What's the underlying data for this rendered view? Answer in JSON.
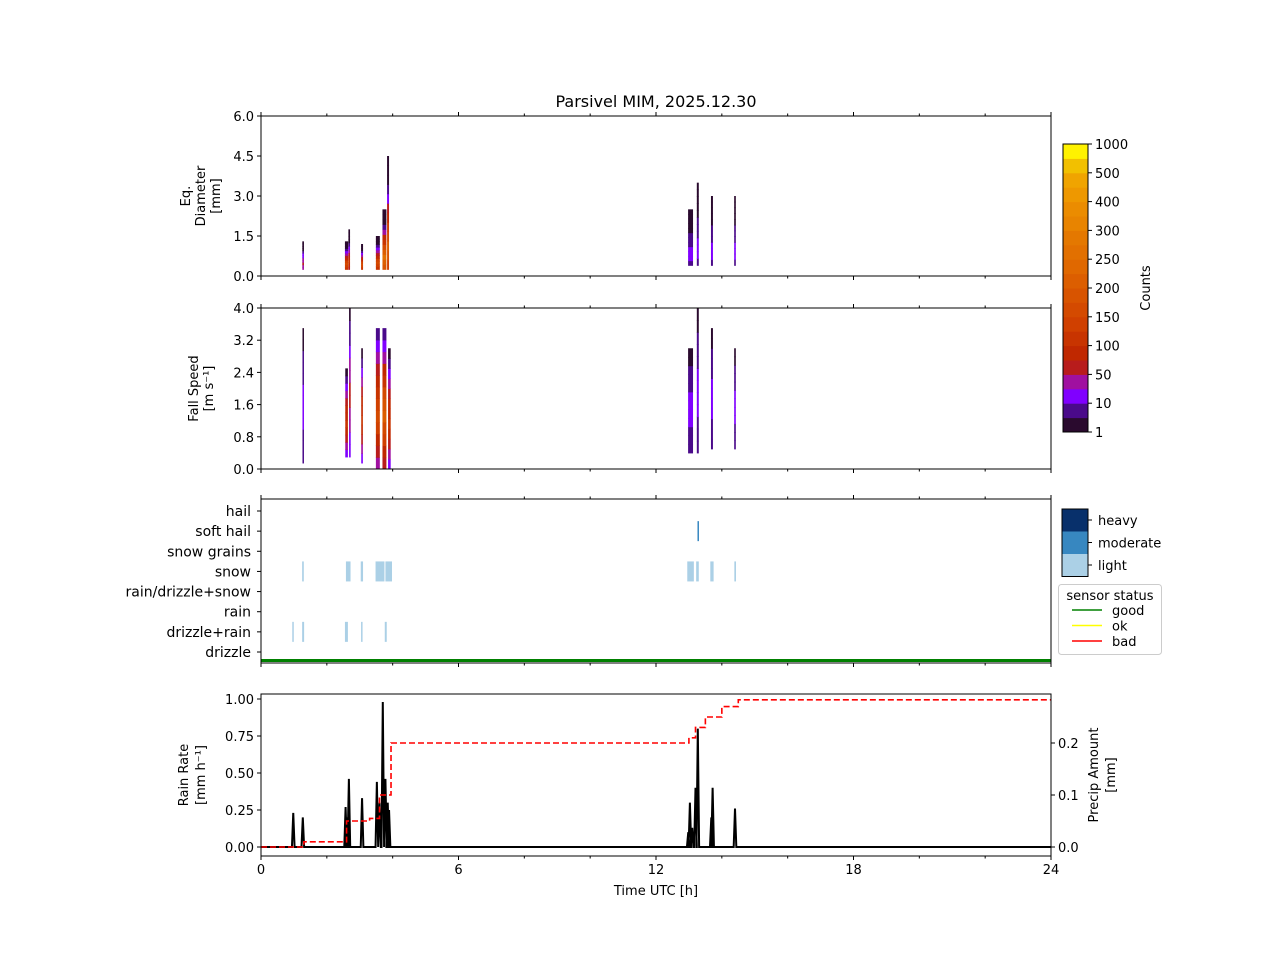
{
  "chart_data": [
    {
      "type": "heatmap",
      "title": "Parsivel MIM, 2025.12.30",
      "ylabel": [
        "Eq.",
        "Diameter",
        "[mm]"
      ],
      "ylim": [
        0,
        6.0
      ],
      "yticks": [
        "0.0",
        "1.5",
        "3.0",
        "4.5",
        "6.0"
      ],
      "columns": [
        {
          "t": 1.28,
          "w": 0.05,
          "dmin": 0.25,
          "dmax": 1.3,
          "peak": 50
        },
        {
          "t": 2.6,
          "w": 0.1,
          "dmin": 0.25,
          "dmax": 1.3,
          "peak": 150
        },
        {
          "t": 2.68,
          "w": 0.05,
          "dmin": 0.25,
          "dmax": 1.75,
          "peak": 100
        },
        {
          "t": 3.07,
          "w": 0.06,
          "dmin": 0.25,
          "dmax": 1.2,
          "peak": 150
        },
        {
          "t": 3.55,
          "w": 0.12,
          "dmin": 0.25,
          "dmax": 1.5,
          "peak": 150
        },
        {
          "t": 3.75,
          "w": 0.12,
          "dmin": 0.25,
          "dmax": 2.5,
          "peak": 250
        },
        {
          "t": 3.86,
          "w": 0.06,
          "dmin": 0.25,
          "dmax": 4.5,
          "peak": 200
        },
        {
          "t": 13.05,
          "w": 0.15,
          "dmin": 0.4,
          "dmax": 2.5,
          "peak": 10
        },
        {
          "t": 13.27,
          "w": 0.06,
          "dmin": 0.4,
          "dmax": 3.5,
          "peak": 10
        },
        {
          "t": 13.7,
          "w": 0.06,
          "dmin": 0.4,
          "dmax": 3.0,
          "peak": 10
        },
        {
          "t": 14.4,
          "w": 0.05,
          "dmin": 0.4,
          "dmax": 3.0,
          "peak": 10
        }
      ]
    },
    {
      "type": "heatmap",
      "ylabel": [
        "Fall Speed",
        "[m s⁻¹]"
      ],
      "ylim": [
        0,
        4.0
      ],
      "yticks": [
        "0.0",
        "0.8",
        "1.6",
        "2.4",
        "3.2",
        "4.0"
      ],
      "columns": [
        {
          "t": 1.28,
          "w": 0.04,
          "vmin": 0.15,
          "vmax": 3.5,
          "peak": 10
        },
        {
          "t": 2.6,
          "w": 0.08,
          "vmin": 0.3,
          "vmax": 2.5,
          "peak": 100
        },
        {
          "t": 2.7,
          "w": 0.05,
          "vmin": 0.3,
          "vmax": 4.0,
          "peak": 50
        },
        {
          "t": 3.07,
          "w": 0.05,
          "vmin": 0.15,
          "vmax": 3.0,
          "peak": 100
        },
        {
          "t": 3.55,
          "w": 0.12,
          "vmin": 0.0,
          "vmax": 3.5,
          "peak": 150
        },
        {
          "t": 3.75,
          "w": 0.12,
          "vmin": 0.0,
          "vmax": 3.5,
          "peak": 200
        },
        {
          "t": 3.9,
          "w": 0.08,
          "vmin": 0.0,
          "vmax": 3.0,
          "peak": 100
        },
        {
          "t": 13.05,
          "w": 0.15,
          "vmin": 0.4,
          "vmax": 3.0,
          "peak": 10
        },
        {
          "t": 13.27,
          "w": 0.06,
          "vmin": 0.4,
          "vmax": 4.0,
          "peak": 10
        },
        {
          "t": 13.7,
          "w": 0.06,
          "vmin": 0.5,
          "vmax": 3.5,
          "peak": 10
        },
        {
          "t": 14.4,
          "w": 0.05,
          "vmin": 0.5,
          "vmax": 3.0,
          "peak": 10
        }
      ]
    },
    {
      "type": "heatmap",
      "categories": [
        "drizzle",
        "drizzle+rain",
        "rain",
        "rain/drizzle+snow",
        "snow",
        "snow grains",
        "soft hail",
        "hail"
      ],
      "intensity_legend": [
        "heavy",
        "moderate",
        "light"
      ],
      "intensity_colors": {
        "light": "#abd0e6",
        "moderate": "#3787c0",
        "heavy": "#08306b"
      },
      "events": [
        {
          "cat": "snow",
          "t0": 1.25,
          "t1": 1.3,
          "level": "light"
        },
        {
          "cat": "snow",
          "t0": 2.58,
          "t1": 2.72,
          "level": "light"
        },
        {
          "cat": "snow",
          "t0": 3.03,
          "t1": 3.1,
          "level": "light"
        },
        {
          "cat": "snow",
          "t0": 3.48,
          "t1": 3.75,
          "level": "light"
        },
        {
          "cat": "snow",
          "t0": 3.78,
          "t1": 3.98,
          "level": "light"
        },
        {
          "cat": "snow",
          "t0": 12.95,
          "t1": 13.15,
          "level": "light"
        },
        {
          "cat": "snow",
          "t0": 13.22,
          "t1": 13.3,
          "level": "light"
        },
        {
          "cat": "snow",
          "t0": 13.65,
          "t1": 13.75,
          "level": "light"
        },
        {
          "cat": "snow",
          "t0": 14.38,
          "t1": 14.43,
          "level": "light"
        },
        {
          "cat": "soft hail",
          "t0": 13.26,
          "t1": 13.29,
          "level": "moderate"
        },
        {
          "cat": "drizzle+rain",
          "t0": 0.95,
          "t1": 0.99,
          "level": "light"
        },
        {
          "cat": "drizzle+rain",
          "t0": 1.25,
          "t1": 1.31,
          "level": "light"
        },
        {
          "cat": "drizzle+rain",
          "t0": 2.55,
          "t1": 2.64,
          "level": "light"
        },
        {
          "cat": "drizzle+rain",
          "t0": 3.04,
          "t1": 3.08,
          "level": "light"
        },
        {
          "cat": "drizzle+rain",
          "t0": 3.76,
          "t1": 3.82,
          "level": "light"
        }
      ],
      "sensor_status": {
        "title": "sensor status",
        "entries": [
          {
            "label": "good",
            "color": "#008000"
          },
          {
            "label": "ok",
            "color": "#ffff00"
          },
          {
            "label": "bad",
            "color": "#ff0000"
          }
        ],
        "value": "good"
      }
    },
    {
      "type": "line",
      "xlabel": "Time UTC [h]",
      "xlim": [
        0,
        24
      ],
      "xticks": [
        "0",
        "6",
        "12",
        "18",
        "24"
      ],
      "ylabel": [
        "Rain Rate",
        "[mm h⁻¹]"
      ],
      "ylim": [
        -0.03,
        1.03
      ],
      "yticks": [
        "0.00",
        "0.25",
        "0.50",
        "0.75",
        "1.00"
      ],
      "y2label": [
        "Precip Amount",
        "[mm]"
      ],
      "y2ticks": [
        "0.0",
        "0.1",
        "0.2"
      ],
      "rain_rate": {
        "color": "#000000",
        "peaks": [
          [
            0.98,
            0.23
          ],
          [
            1.27,
            0.2
          ],
          [
            2.57,
            0.27
          ],
          [
            2.62,
            0.2
          ],
          [
            2.67,
            0.46
          ],
          [
            3.07,
            0.33
          ],
          [
            3.52,
            0.44
          ],
          [
            3.6,
            0.3
          ],
          [
            3.7,
            0.98
          ],
          [
            3.78,
            0.46
          ],
          [
            3.85,
            0.3
          ],
          [
            3.89,
            0.25
          ],
          [
            12.98,
            0.1
          ],
          [
            13.03,
            0.3
          ],
          [
            13.1,
            0.13
          ],
          [
            13.2,
            0.4
          ],
          [
            13.27,
            0.8
          ],
          [
            13.68,
            0.2
          ],
          [
            13.72,
            0.4
          ],
          [
            14.4,
            0.26
          ]
        ]
      },
      "precip_amount": {
        "color": "#ff0000",
        "steps": [
          [
            0,
            0
          ],
          [
            1.3,
            0.01
          ],
          [
            2.6,
            0.05
          ],
          [
            3.3,
            0.055
          ],
          [
            3.6,
            0.1
          ],
          [
            3.95,
            0.2
          ],
          [
            13.0,
            0.21
          ],
          [
            13.2,
            0.23
          ],
          [
            13.5,
            0.25
          ],
          [
            14.0,
            0.27
          ],
          [
            14.5,
            0.283
          ],
          [
            24,
            0.283
          ]
        ]
      }
    }
  ],
  "colorbar": {
    "label": "Counts",
    "ticks": [
      "1",
      "10",
      "50",
      "100",
      "150",
      "200",
      "250",
      "300",
      "400",
      "500",
      "1000"
    ],
    "colors": [
      "#2a0a2e",
      "#4a0a8a",
      "#8000ff",
      "#a010a0",
      "#b81c1c",
      "#c02800",
      "#c83400",
      "#d04000",
      "#d44a00",
      "#d85400",
      "#dc5e00",
      "#e06800",
      "#e27000",
      "#e47800",
      "#e88400",
      "#eb8c00",
      "#ee9800",
      "#f0a400",
      "#f2c000",
      "#fff200"
    ]
  }
}
